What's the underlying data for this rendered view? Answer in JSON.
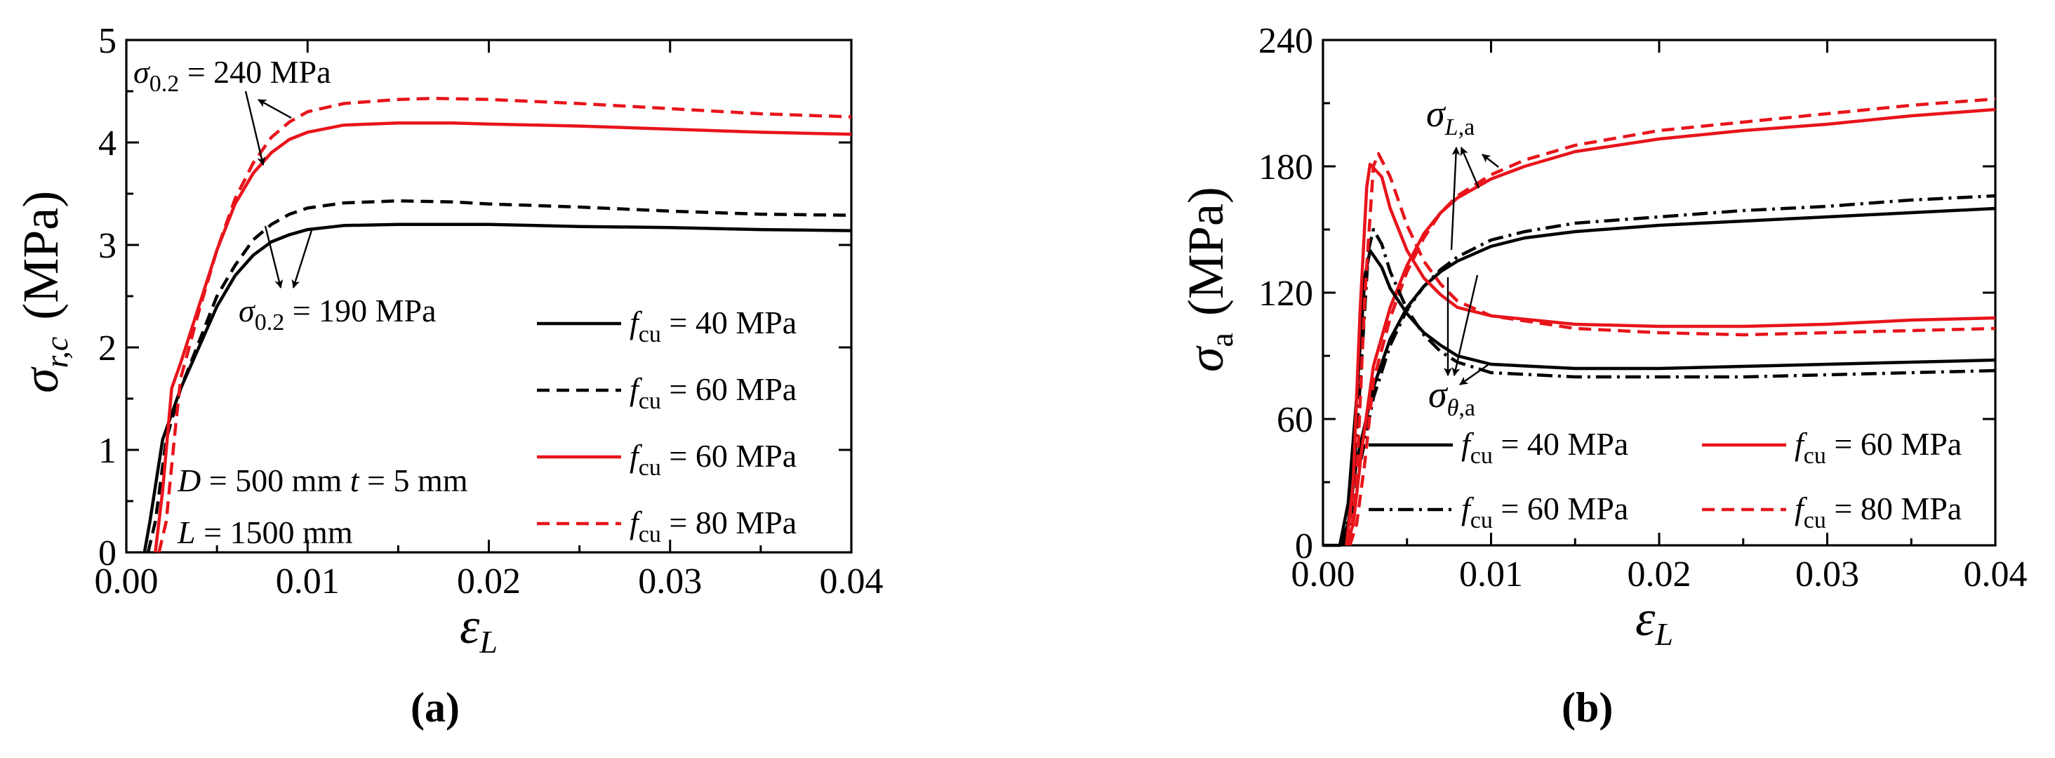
{
  "colors": {
    "black": "#000000",
    "red": "#e8141b"
  },
  "panel_labels": {
    "a": "a",
    "b": "b"
  },
  "chart_data": [
    {
      "type": "line",
      "panel": "a",
      "ylabel": {
        "base": "σ",
        "sub": "r,c",
        "unit": "(MPa)"
      },
      "xlabel": {
        "base": "ε",
        "sub": "L"
      },
      "xlim": [
        0,
        0.04
      ],
      "ylim": [
        0,
        5
      ],
      "xticks": [
        "0.00",
        "0.01",
        "0.02",
        "0.03",
        "0.04"
      ],
      "yticks": [
        "0",
        "1",
        "2",
        "3",
        "4",
        "5"
      ],
      "series": [
        {
          "name": "f_cu = 40 MPa",
          "style": "solid",
          "color": "#000000",
          "points": [
            [
              0.001,
              0
            ],
            [
              0.0013,
              0.3
            ],
            [
              0.002,
              1.1
            ],
            [
              0.003,
              1.6
            ],
            [
              0.004,
              2.0
            ],
            [
              0.005,
              2.4
            ],
            [
              0.006,
              2.7
            ],
            [
              0.007,
              2.9
            ],
            [
              0.008,
              3.03
            ],
            [
              0.009,
              3.1
            ],
            [
              0.01,
              3.15
            ],
            [
              0.012,
              3.19
            ],
            [
              0.015,
              3.2
            ],
            [
              0.017,
              3.2
            ],
            [
              0.02,
              3.2
            ],
            [
              0.025,
              3.18
            ],
            [
              0.03,
              3.17
            ],
            [
              0.035,
              3.15
            ],
            [
              0.04,
              3.14
            ]
          ]
        },
        {
          "name": "f_cu = 60 MPa",
          "style": "dashed",
          "color": "#000000",
          "points": [
            [
              0.0012,
              0
            ],
            [
              0.0016,
              0.3
            ],
            [
              0.0022,
              1.1
            ],
            [
              0.003,
              1.6
            ],
            [
              0.004,
              2.05
            ],
            [
              0.005,
              2.5
            ],
            [
              0.006,
              2.8
            ],
            [
              0.007,
              3.05
            ],
            [
              0.008,
              3.2
            ],
            [
              0.009,
              3.3
            ],
            [
              0.01,
              3.36
            ],
            [
              0.012,
              3.41
            ],
            [
              0.015,
              3.43
            ],
            [
              0.018,
              3.42
            ],
            [
              0.02,
              3.4
            ],
            [
              0.025,
              3.37
            ],
            [
              0.03,
              3.33
            ],
            [
              0.035,
              3.3
            ],
            [
              0.04,
              3.29
            ]
          ]
        },
        {
          "name": "f_cu = 60 MPa",
          "style": "solid",
          "color": "#e8141b",
          "points": [
            [
              0.0016,
              0
            ],
            [
              0.002,
              0.6
            ],
            [
              0.0025,
              1.6
            ],
            [
              0.003,
              1.85
            ],
            [
              0.004,
              2.4
            ],
            [
              0.005,
              2.95
            ],
            [
              0.006,
              3.4
            ],
            [
              0.007,
              3.7
            ],
            [
              0.008,
              3.9
            ],
            [
              0.009,
              4.03
            ],
            [
              0.01,
              4.1
            ],
            [
              0.012,
              4.17
            ],
            [
              0.015,
              4.19
            ],
            [
              0.018,
              4.19
            ],
            [
              0.02,
              4.18
            ],
            [
              0.025,
              4.16
            ],
            [
              0.03,
              4.13
            ],
            [
              0.035,
              4.1
            ],
            [
              0.04,
              4.08
            ]
          ]
        },
        {
          "name": "f_cu = 80 MPa",
          "style": "dashed",
          "color": "#e8141b",
          "points": [
            [
              0.0018,
              0
            ],
            [
              0.0022,
              0.3
            ],
            [
              0.0027,
              1.2
            ],
            [
              0.003,
              1.7
            ],
            [
              0.004,
              2.35
            ],
            [
              0.005,
              2.95
            ],
            [
              0.006,
              3.45
            ],
            [
              0.007,
              3.8
            ],
            [
              0.008,
              4.05
            ],
            [
              0.009,
              4.2
            ],
            [
              0.01,
              4.3
            ],
            [
              0.012,
              4.38
            ],
            [
              0.015,
              4.42
            ],
            [
              0.017,
              4.43
            ],
            [
              0.02,
              4.42
            ],
            [
              0.025,
              4.38
            ],
            [
              0.03,
              4.33
            ],
            [
              0.035,
              4.28
            ],
            [
              0.04,
              4.25
            ]
          ]
        }
      ],
      "legend": [
        {
          "label": "f",
          "sub": "cu",
          "rest": " = 40 MPa",
          "style": "solid",
          "color": "#000000"
        },
        {
          "label": "f",
          "sub": "cu",
          "rest": " = 60 MPa",
          "style": "dashed",
          "color": "#000000"
        },
        {
          "label": "f",
          "sub": "cu",
          "rest": " = 60 MPa",
          "style": "solid",
          "color": "#e8141b"
        },
        {
          "label": "f",
          "sub": "cu",
          "rest": " = 80 MPa",
          "style": "dashed",
          "color": "#e8141b"
        }
      ],
      "annotations": {
        "sigma240": {
          "base": "σ",
          "sub": "0.2",
          "rest": " = 240 MPa"
        },
        "sigma190": {
          "base": "σ",
          "sub": "0.2",
          "rest": " = 190 MPa"
        },
        "dims_line1_a": "D",
        "dims_line1_b": " = 500 mm ",
        "dims_line1_c": "t",
        "dims_line1_d": " = 5 mm",
        "dims_line2_a": "L",
        "dims_line2_b": " = 1500 mm"
      }
    },
    {
      "type": "line",
      "panel": "b",
      "ylabel": {
        "base": "σ",
        "sub": "a",
        "unit": "(MPa)"
      },
      "xlabel": {
        "base": "ε",
        "sub": "L"
      },
      "xlim": [
        0,
        0.04
      ],
      "ylim": [
        0,
        240
      ],
      "xticks": [
        "0.00",
        "0.01",
        "0.02",
        "0.03",
        "0.04"
      ],
      "yticks": [
        "0",
        "60",
        "120",
        "180",
        "240"
      ],
      "series": [
        {
          "name": "σL,a f_cu = 40 MPa",
          "style": "solid",
          "color": "#000000",
          "points": [
            [
              0.001,
              0
            ],
            [
              0.0015,
              10
            ],
            [
              0.002,
              40
            ],
            [
              0.003,
              75
            ],
            [
              0.004,
              98
            ],
            [
              0.005,
              113
            ],
            [
              0.006,
              123
            ],
            [
              0.007,
              130
            ],
            [
              0.008,
              135
            ],
            [
              0.01,
              142
            ],
            [
              0.012,
              146
            ],
            [
              0.015,
              149
            ],
            [
              0.02,
              152
            ],
            [
              0.025,
              154
            ],
            [
              0.03,
              156
            ],
            [
              0.035,
              158
            ],
            [
              0.04,
              160
            ]
          ]
        },
        {
          "name": "σL,a f_cu = 60 MPa (dash-dot)",
          "style": "dashdot",
          "color": "#000000",
          "points": [
            [
              0.0012,
              0
            ],
            [
              0.0017,
              10
            ],
            [
              0.0022,
              38
            ],
            [
              0.003,
              70
            ],
            [
              0.004,
              95
            ],
            [
              0.005,
              112
            ],
            [
              0.006,
              123
            ],
            [
              0.007,
              131
            ],
            [
              0.008,
              137
            ],
            [
              0.01,
              145
            ],
            [
              0.012,
              149
            ],
            [
              0.015,
              153
            ],
            [
              0.02,
              156
            ],
            [
              0.025,
              159
            ],
            [
              0.03,
              161
            ],
            [
              0.035,
              164
            ],
            [
              0.04,
              166
            ]
          ]
        },
        {
          "name": "σL,a f_cu = 60 MPa",
          "style": "solid",
          "color": "#e8141b",
          "points": [
            [
              0.0014,
              0
            ],
            [
              0.0018,
              10
            ],
            [
              0.0023,
              45
            ],
            [
              0.003,
              85
            ],
            [
              0.004,
              113
            ],
            [
              0.005,
              133
            ],
            [
              0.006,
              148
            ],
            [
              0.007,
              158
            ],
            [
              0.008,
              165
            ],
            [
              0.01,
              174
            ],
            [
              0.012,
              180
            ],
            [
              0.015,
              187
            ],
            [
              0.02,
              193
            ],
            [
              0.025,
              197
            ],
            [
              0.03,
              200
            ],
            [
              0.035,
              204
            ],
            [
              0.04,
              207
            ]
          ]
        },
        {
          "name": "σL,a f_cu = 80 MPa",
          "style": "dashed",
          "color": "#e8141b",
          "points": [
            [
              0.0016,
              0
            ],
            [
              0.002,
              10
            ],
            [
              0.0025,
              40
            ],
            [
              0.003,
              78
            ],
            [
              0.004,
              108
            ],
            [
              0.005,
              130
            ],
            [
              0.006,
              146
            ],
            [
              0.007,
              158
            ],
            [
              0.008,
              166
            ],
            [
              0.01,
              176
            ],
            [
              0.012,
              183
            ],
            [
              0.015,
              190
            ],
            [
              0.02,
              197
            ],
            [
              0.025,
              201
            ],
            [
              0.03,
              205
            ],
            [
              0.035,
              209
            ],
            [
              0.04,
              212
            ]
          ]
        },
        {
          "name": "σθ,a f_cu = 40 MPa",
          "style": "solid",
          "color": "#000000",
          "points": [
            [
              0.0,
              0
            ],
            [
              0.001,
              0
            ],
            [
              0.0015,
              20
            ],
            [
              0.002,
              70
            ],
            [
              0.0025,
              128
            ],
            [
              0.0028,
              140
            ],
            [
              0.0035,
              132
            ],
            [
              0.004,
              122
            ],
            [
              0.005,
              110
            ],
            [
              0.006,
              101
            ],
            [
              0.007,
              95
            ],
            [
              0.008,
              90
            ],
            [
              0.01,
              86
            ],
            [
              0.015,
              84
            ],
            [
              0.02,
              84
            ],
            [
              0.025,
              85
            ],
            [
              0.03,
              86
            ],
            [
              0.035,
              87
            ],
            [
              0.04,
              88
            ]
          ]
        },
        {
          "name": "σθ,a f_cu = 60 MPa (dash-dot)",
          "style": "dashdot",
          "color": "#000000",
          "points": [
            [
              0.0012,
              0
            ],
            [
              0.0017,
              20
            ],
            [
              0.0022,
              75
            ],
            [
              0.0027,
              140
            ],
            [
              0.003,
              150
            ],
            [
              0.0035,
              143
            ],
            [
              0.004,
              130
            ],
            [
              0.005,
              112
            ],
            [
              0.006,
              100
            ],
            [
              0.007,
              92
            ],
            [
              0.008,
              87
            ],
            [
              0.01,
              82
            ],
            [
              0.015,
              80
            ],
            [
              0.02,
              80
            ],
            [
              0.025,
              80
            ],
            [
              0.03,
              81
            ],
            [
              0.035,
              82
            ],
            [
              0.04,
              83
            ]
          ]
        },
        {
          "name": "σθ,a f_cu = 60 MPa",
          "style": "solid",
          "color": "#e8141b",
          "points": [
            [
              0.0014,
              0
            ],
            [
              0.0018,
              30
            ],
            [
              0.0022,
              110
            ],
            [
              0.0026,
              170
            ],
            [
              0.0028,
              181
            ],
            [
              0.0035,
              175
            ],
            [
              0.004,
              160
            ],
            [
              0.005,
              140
            ],
            [
              0.006,
              127
            ],
            [
              0.007,
              119
            ],
            [
              0.008,
              113
            ],
            [
              0.01,
              109
            ],
            [
              0.015,
              105
            ],
            [
              0.02,
              104
            ],
            [
              0.025,
              104
            ],
            [
              0.03,
              105
            ],
            [
              0.035,
              107
            ],
            [
              0.04,
              108
            ]
          ]
        },
        {
          "name": "σθ,a f_cu = 80 MPa",
          "style": "dashed",
          "color": "#e8141b",
          "points": [
            [
              0.0016,
              0
            ],
            [
              0.002,
              30
            ],
            [
              0.0025,
              120
            ],
            [
              0.003,
              180
            ],
            [
              0.0033,
              186
            ],
            [
              0.004,
              175
            ],
            [
              0.005,
              152
            ],
            [
              0.006,
              135
            ],
            [
              0.007,
              124
            ],
            [
              0.008,
              116
            ],
            [
              0.01,
              109
            ],
            [
              0.015,
              103
            ],
            [
              0.02,
              101
            ],
            [
              0.025,
              100
            ],
            [
              0.03,
              101
            ],
            [
              0.035,
              102
            ],
            [
              0.04,
              103
            ]
          ]
        }
      ],
      "legend": [
        {
          "label": "f",
          "sub": "cu",
          "rest": " = 40 MPa",
          "style": "solid",
          "color": "#000000"
        },
        {
          "label": "f",
          "sub": "cu",
          "rest": " = 60 MPa",
          "style": "solid",
          "color": "#e8141b"
        },
        {
          "label": "f",
          "sub": "cu",
          "rest": " = 60 MPa",
          "style": "dashdot",
          "color": "#000000"
        },
        {
          "label": "f",
          "sub": "cu",
          "rest": " = 80 MPa",
          "style": "dashed",
          "color": "#e8141b"
        }
      ],
      "annotations": {
        "sigmaL": {
          "base": "σ",
          "sub": "L",
          "sub2": ",a"
        },
        "sigmaTheta": {
          "base": "σ",
          "sub": "θ",
          "sub2": ",a"
        }
      }
    }
  ]
}
